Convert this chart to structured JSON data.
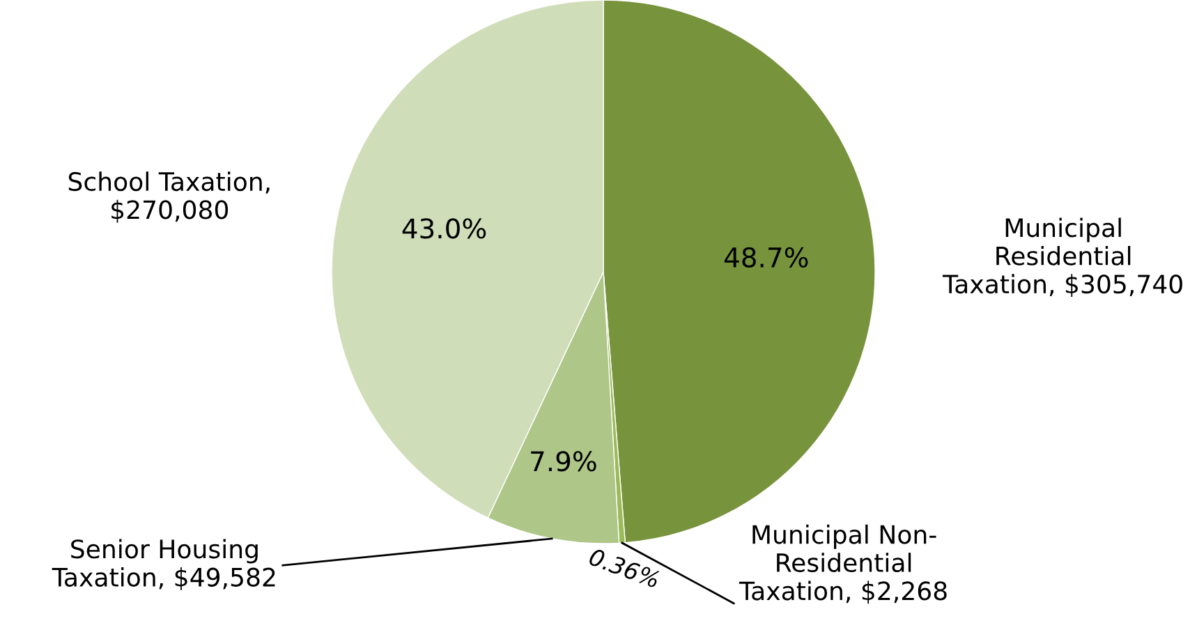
{
  "chart_data": {
    "type": "pie",
    "categories": [
      "Municipal\nResidential\nTaxation, $305,740",
      "Municipal Non-\nResidential\nTaxation, $2,268",
      "Senior Housing\nTaxation, $49,582",
      "School Taxation,\n$270,080"
    ],
    "values": [
      48.7,
      0.36,
      7.9,
      43.0
    ],
    "value_labels": [
      "48.7%",
      "0.36%",
      "7.9%",
      "43.0%"
    ],
    "colors": [
      "#77933c",
      "#9bbb59",
      "#aec688",
      "#d0ddb9"
    ]
  }
}
